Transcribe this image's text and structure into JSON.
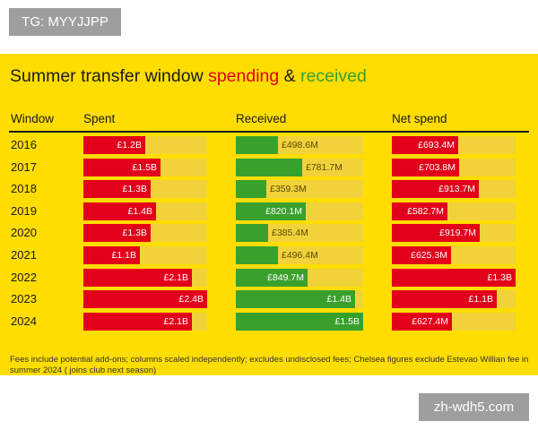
{
  "tags": {
    "top_left": "TG: MYYJJPP",
    "bottom_right": "zh-wdh5.com"
  },
  "title": {
    "part1": "Summer transfer window ",
    "part2": "spending",
    "part3": " & ",
    "part4": "received"
  },
  "headers": {
    "window": "Window",
    "spent": "Spent",
    "received": "Received",
    "net": "Net spend"
  },
  "footnote": "Fees include potential add-ons; columns scaled independently; excludes undisclosed fees; Chelsea figures exclude Estevao Willian fee in summer 2024 ( joins club next season)",
  "colors": {
    "spent": "#e2001a",
    "received": "#3aa02c",
    "net": "#e2001a",
    "background": "#FFDD00"
  },
  "chart_data": {
    "type": "bar",
    "categories": [
      "2016",
      "2017",
      "2018",
      "2019",
      "2020",
      "2021",
      "2022",
      "2023",
      "2024"
    ],
    "series": [
      {
        "name": "Spent",
        "values": [
          1.2,
          1.5,
          1.3,
          1.4,
          1.3,
          1.1,
          2.1,
          2.4,
          2.1
        ],
        "labels": [
          "£1.2B",
          "£1.5B",
          "£1.3B",
          "£1.4B",
          "£1.3B",
          "£1.1B",
          "£2.1B",
          "£2.4B",
          "£2.1B"
        ],
        "max": 2.4
      },
      {
        "name": "Received",
        "values": [
          498.6,
          781.7,
          359.3,
          820.1,
          385.4,
          496.4,
          849.7,
          1400,
          1500
        ],
        "labels": [
          "£498.6M",
          "£781.7M",
          "£359.3M",
          "£820.1M",
          "£385.4M",
          "£496.4M",
          "£849.7M",
          "£1.4B",
          "£1.5B"
        ],
        "max": 1500
      },
      {
        "name": "Net spend",
        "values": [
          693.4,
          703.8,
          913.7,
          582.7,
          919.7,
          625.3,
          1300,
          1100,
          627.4
        ],
        "labels": [
          "£693.4M",
          "£703.8M",
          "£913.7M",
          "£582.7M",
          "£919.7M",
          "£625.3M",
          "£1.3B",
          "£1.1B",
          "£627.4M"
        ],
        "max": 1300
      }
    ]
  }
}
